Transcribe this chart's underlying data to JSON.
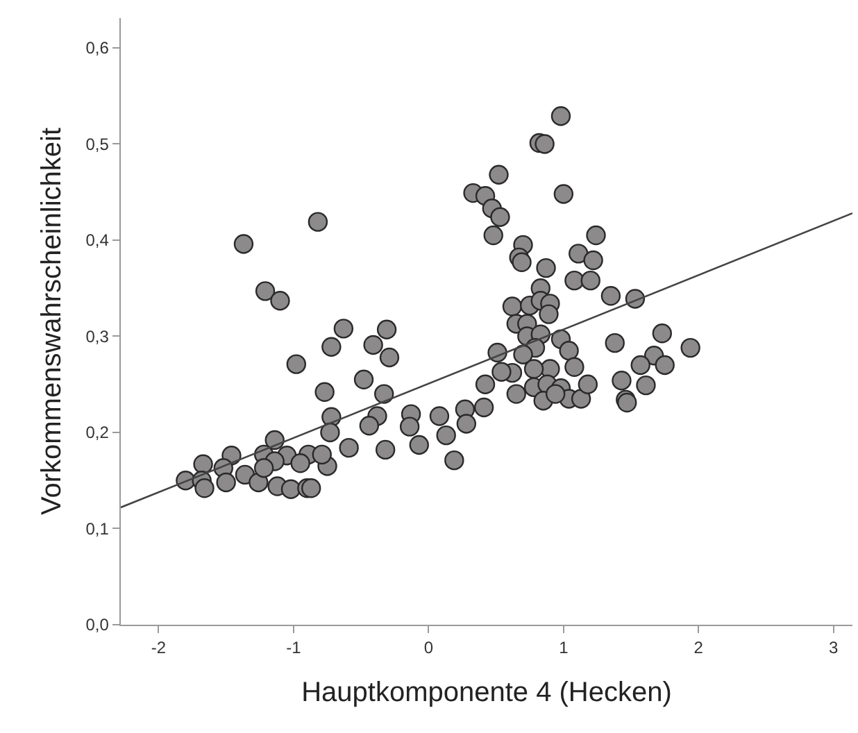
{
  "chart_data": {
    "type": "scatter",
    "xlabel": "Hauptkomponente 4 (Hecken)",
    "ylabel": "Vorkommenswahrscheinlichkeit",
    "xlim": [
      -2.28,
      3.14
    ],
    "ylim": [
      0,
      0.631
    ],
    "xticks": [
      -2,
      -1,
      0,
      1,
      2,
      3
    ],
    "yticks": [
      {
        "value": 0,
        "label": "0,0"
      },
      {
        "value": 0.1,
        "label": "0,1"
      },
      {
        "value": 0.2,
        "label": "0,2"
      },
      {
        "value": 0.3,
        "label": "0,3"
      },
      {
        "value": 0.4,
        "label": "0,4"
      },
      {
        "value": 0.5,
        "label": "0,5"
      },
      {
        "value": 0.6,
        "label": "0,6"
      }
    ],
    "grid": false,
    "marker": "circle",
    "series": [
      {
        "color": "#8c8a8a",
        "x": [
          -1.37,
          -0.82,
          -1.21,
          -1.1,
          -0.98,
          -0.72,
          -0.63,
          -0.41,
          -0.31,
          -0.29,
          -0.48,
          -0.77,
          -0.33,
          -0.72,
          -0.38,
          -0.13,
          0.08,
          0.27,
          0.19,
          0.13,
          0.28,
          -0.14,
          -0.44,
          -0.32,
          -0.07,
          -0.59,
          -0.73,
          -0.89,
          -0.75,
          -1.14,
          -1.05,
          -1.22,
          -1.14,
          -1.46,
          -1.52,
          -1.36,
          -1.26,
          -1.12,
          -1.02,
          -0.9,
          -0.87,
          -1.67,
          -1.8,
          -1.68,
          -1.66,
          -1.5,
          -1.22,
          -0.95,
          -0.79,
          0.98,
          0.82,
          0.86,
          0.52,
          1.0,
          0.33,
          0.42,
          0.47,
          0.53,
          0.48,
          1.24,
          0.7,
          0.67,
          0.69,
          1.11,
          1.22,
          0.87,
          1.08,
          1.2,
          0.83,
          1.35,
          1.53,
          0.62,
          0.75,
          0.83,
          0.9,
          0.89,
          0.65,
          0.73,
          0.73,
          0.83,
          0.98,
          0.79,
          1.04,
          0.7,
          0.51,
          1.08,
          0.9,
          0.78,
          0.62,
          0.54,
          0.42,
          0.65,
          0.78,
          0.88,
          0.98,
          0.85,
          1.04,
          1.13,
          1.18,
          0.94,
          1.38,
          1.73,
          1.94,
          1.67,
          1.57,
          1.75,
          1.43,
          1.61,
          1.46,
          1.47,
          0.41
        ],
        "values": [
          0.396,
          0.419,
          0.347,
          0.337,
          0.271,
          0.289,
          0.308,
          0.291,
          0.307,
          0.278,
          0.255,
          0.242,
          0.24,
          0.216,
          0.217,
          0.219,
          0.217,
          0.224,
          0.171,
          0.197,
          0.209,
          0.206,
          0.207,
          0.182,
          0.187,
          0.184,
          0.2,
          0.177,
          0.165,
          0.192,
          0.176,
          0.177,
          0.17,
          0.176,
          0.163,
          0.156,
          0.148,
          0.144,
          0.141,
          0.142,
          0.142,
          0.167,
          0.15,
          0.15,
          0.142,
          0.148,
          0.163,
          0.168,
          0.177,
          0.529,
          0.501,
          0.5,
          0.468,
          0.448,
          0.449,
          0.446,
          0.433,
          0.424,
          0.405,
          0.405,
          0.395,
          0.382,
          0.377,
          0.386,
          0.379,
          0.371,
          0.358,
          0.358,
          0.35,
          0.342,
          0.339,
          0.331,
          0.332,
          0.337,
          0.334,
          0.323,
          0.313,
          0.313,
          0.3,
          0.302,
          0.297,
          0.288,
          0.285,
          0.281,
          0.283,
          0.268,
          0.266,
          0.266,
          0.262,
          0.263,
          0.25,
          0.24,
          0.247,
          0.25,
          0.246,
          0.233,
          0.235,
          0.235,
          0.25,
          0.24,
          0.293,
          0.303,
          0.288,
          0.28,
          0.27,
          0.27,
          0.254,
          0.249,
          0.234,
          0.231,
          0.226
        ]
      },
      {
        "type": "line",
        "color": "#444444",
        "line_style": "solid",
        "marker": "none",
        "x": [
          -2.28,
          3.14
        ],
        "values": [
          0.122,
          0.428
        ]
      }
    ]
  }
}
